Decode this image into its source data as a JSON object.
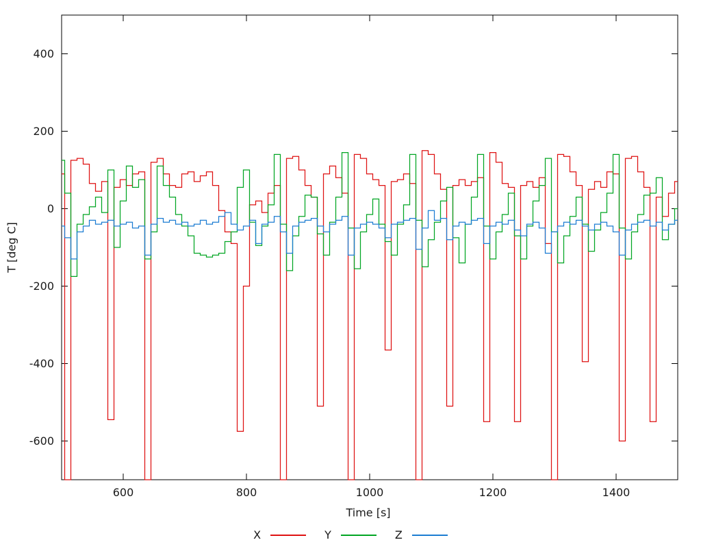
{
  "page": {
    "background": "#ffffff"
  },
  "chart_data": {
    "type": "line",
    "render_style": "steps",
    "title": "",
    "xlabel": "Time [s]",
    "ylabel": "T [deg C]",
    "xlim": [
      500,
      1500
    ],
    "ylim": [
      -700,
      500
    ],
    "xticks": [
      600,
      800,
      1000,
      1200,
      1400
    ],
    "yticks": [
      400,
      200,
      0,
      -200,
      -400,
      -600
    ],
    "grid": false,
    "legend_position": "bottom-center",
    "axis_color": "#000000",
    "text_color": "#1a1a1a",
    "x": [
      500,
      510,
      520,
      530,
      540,
      550,
      560,
      570,
      580,
      590,
      600,
      610,
      620,
      630,
      640,
      650,
      660,
      670,
      680,
      690,
      700,
      710,
      720,
      730,
      740,
      750,
      760,
      770,
      780,
      790,
      800,
      810,
      820,
      830,
      840,
      850,
      860,
      870,
      880,
      890,
      900,
      910,
      920,
      930,
      940,
      950,
      960,
      970,
      980,
      990,
      1000,
      1010,
      1020,
      1030,
      1040,
      1050,
      1060,
      1070,
      1080,
      1090,
      1100,
      1110,
      1120,
      1130,
      1140,
      1150,
      1160,
      1170,
      1180,
      1190,
      1200,
      1210,
      1220,
      1230,
      1240,
      1250,
      1260,
      1270,
      1280,
      1290,
      1300,
      1310,
      1320,
      1330,
      1340,
      1350,
      1360,
      1370,
      1380,
      1390,
      1400,
      1410,
      1420,
      1430,
      1440,
      1450,
      1460,
      1470,
      1480,
      1490,
      1500
    ],
    "series": [
      {
        "name": "X",
        "color": "#de1111",
        "values": [
          90,
          -700,
          125,
          130,
          115,
          65,
          45,
          70,
          -545,
          55,
          75,
          60,
          90,
          95,
          -700,
          120,
          130,
          90,
          60,
          55,
          90,
          95,
          70,
          85,
          95,
          60,
          -5,
          -60,
          -90,
          -575,
          -200,
          10,
          20,
          -10,
          40,
          60,
          -700,
          130,
          135,
          100,
          60,
          30,
          -510,
          90,
          110,
          80,
          40,
          -700,
          140,
          130,
          90,
          75,
          60,
          -365,
          70,
          75,
          90,
          65,
          -700,
          150,
          140,
          90,
          50,
          -510,
          60,
          75,
          60,
          70,
          80,
          -550,
          145,
          120,
          65,
          55,
          -550,
          60,
          70,
          55,
          80,
          -90,
          -700,
          140,
          135,
          95,
          60,
          -395,
          50,
          70,
          55,
          95,
          90,
          -600,
          130,
          135,
          95,
          55,
          -550,
          30,
          -20,
          40,
          70
        ]
      },
      {
        "name": "Y",
        "color": "#00a522",
        "values": [
          125,
          40,
          -175,
          -40,
          -15,
          5,
          30,
          -10,
          100,
          -100,
          20,
          110,
          55,
          75,
          -130,
          -60,
          110,
          60,
          30,
          -15,
          -45,
          -70,
          -115,
          -120,
          -125,
          -120,
          -115,
          -85,
          -60,
          55,
          100,
          -35,
          -95,
          -45,
          10,
          140,
          -40,
          -160,
          -70,
          -20,
          35,
          30,
          -65,
          -120,
          -35,
          30,
          145,
          -50,
          -155,
          -60,
          -15,
          25,
          -40,
          -85,
          -120,
          -40,
          10,
          140,
          -30,
          -150,
          -80,
          -35,
          20,
          55,
          -75,
          -140,
          -40,
          30,
          140,
          -45,
          -130,
          -60,
          -15,
          40,
          -70,
          -130,
          -45,
          20,
          60,
          130,
          -60,
          -140,
          -70,
          -20,
          30,
          -40,
          -110,
          -55,
          -10,
          40,
          140,
          -50,
          -130,
          -60,
          -15,
          35,
          40,
          80,
          -80,
          -40,
          0
        ]
      },
      {
        "name": "Z",
        "color": "#1b7cd2",
        "values": [
          -45,
          -75,
          -130,
          -60,
          -45,
          -30,
          -40,
          -35,
          -30,
          -45,
          -40,
          -35,
          -50,
          -45,
          -120,
          -40,
          -25,
          -35,
          -30,
          -40,
          -35,
          -45,
          -40,
          -30,
          -40,
          -35,
          -20,
          -10,
          -40,
          -55,
          -45,
          -30,
          -90,
          -40,
          -35,
          -20,
          -60,
          -115,
          -45,
          -35,
          -30,
          -25,
          -45,
          -60,
          -40,
          -30,
          -20,
          -120,
          -50,
          -40,
          -35,
          -40,
          -50,
          -75,
          -40,
          -35,
          -30,
          -25,
          -105,
          -50,
          -5,
          -30,
          -25,
          -80,
          -45,
          -35,
          -40,
          -30,
          -25,
          -90,
          -45,
          -35,
          -40,
          -30,
          -55,
          -70,
          -40,
          -35,
          -50,
          -115,
          -60,
          -45,
          -35,
          -40,
          -30,
          -45,
          -55,
          -40,
          -35,
          -45,
          -60,
          -120,
          -55,
          -40,
          -35,
          -30,
          -45,
          -35,
          -55,
          -40,
          -30
        ]
      }
    ]
  }
}
